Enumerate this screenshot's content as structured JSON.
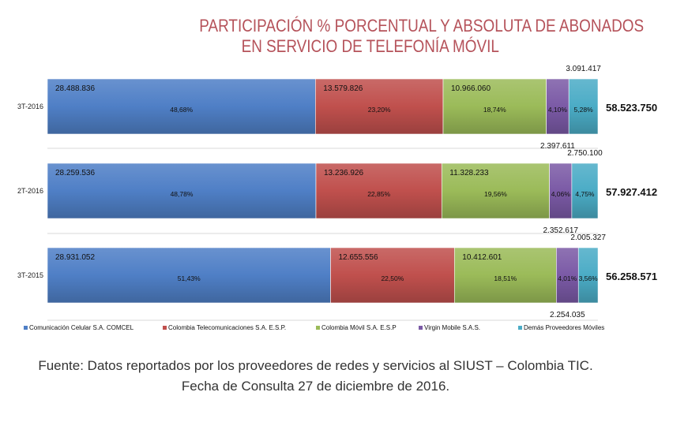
{
  "title_line1": "PARTICIPACIÓN % PORCENTUAL Y ABSOLUTA DE ABONADOS",
  "title_line2": "EN SERVICIO DE TELEFONÍA MÓVIL",
  "source_line1": "Fuente: Datos reportados por los proveedores de redes y servicios al SIUST – Colombia TIC.",
  "source_line2": "Fecha de Consulta 27 de diciembre de 2016.",
  "colors": {
    "COMCEL": "#4f7fc6",
    "ETB": "#c0504d",
    "TIGO": "#9bbb59",
    "VIRGIN": "#7b5aa6",
    "OTROS": "#4bacc6"
  },
  "chart_data": {
    "type": "bar",
    "orientation": "horizontal",
    "stacked": "percent",
    "categories": [
      "3T-2016",
      "2T-2016",
      "3T-2015"
    ],
    "totals": [
      "58.523.750",
      "57.927.412",
      "56.258.571"
    ],
    "legend_position": "bottom",
    "series": [
      {
        "name": "Comunicación Celular S.A. COMCEL",
        "key": "COMCEL",
        "values": [
          48.68,
          48.78,
          51.43
        ],
        "value_labels": [
          "28.488.836",
          "28.259.536",
          "28.931.052"
        ],
        "pct_labels": [
          "48,68%",
          "48,78%",
          "51,43%"
        ]
      },
      {
        "name": "Colombia Telecomunicaciones S.A. E.S.P.",
        "key": "ETB",
        "values": [
          23.2,
          22.85,
          22.5
        ],
        "value_labels": [
          "13.579.826",
          "13.236.926",
          "12.655.556"
        ],
        "pct_labels": [
          "23,20%",
          "22,85%",
          "22,50%"
        ]
      },
      {
        "name": "Colombia Móvil S.A. E.S.P",
        "key": "TIGO",
        "values": [
          18.74,
          19.56,
          18.51
        ],
        "value_labels": [
          "10.966.060",
          "11.328.233",
          "10.412.601"
        ],
        "pct_labels": [
          "18,74%",
          "19,56%",
          "18,51%"
        ]
      },
      {
        "name": "Virgin Mobile S.A.S.",
        "key": "VIRGIN",
        "values": [
          4.1,
          4.06,
          4.01
        ],
        "value_labels": [
          "2.397.611",
          "2.352.617",
          "2.254.035"
        ],
        "pct_labels": [
          "4,10%",
          "4,06%",
          "4,01%"
        ]
      },
      {
        "name": "Demás Proveedores Móviles",
        "key": "OTROS",
        "values": [
          5.28,
          4.75,
          3.56
        ],
        "value_labels": [
          "3.091.417",
          "2.750.100",
          "2.005.327"
        ],
        "pct_labels": [
          "5,28%",
          "4,75%",
          "3,56%"
        ]
      }
    ]
  }
}
